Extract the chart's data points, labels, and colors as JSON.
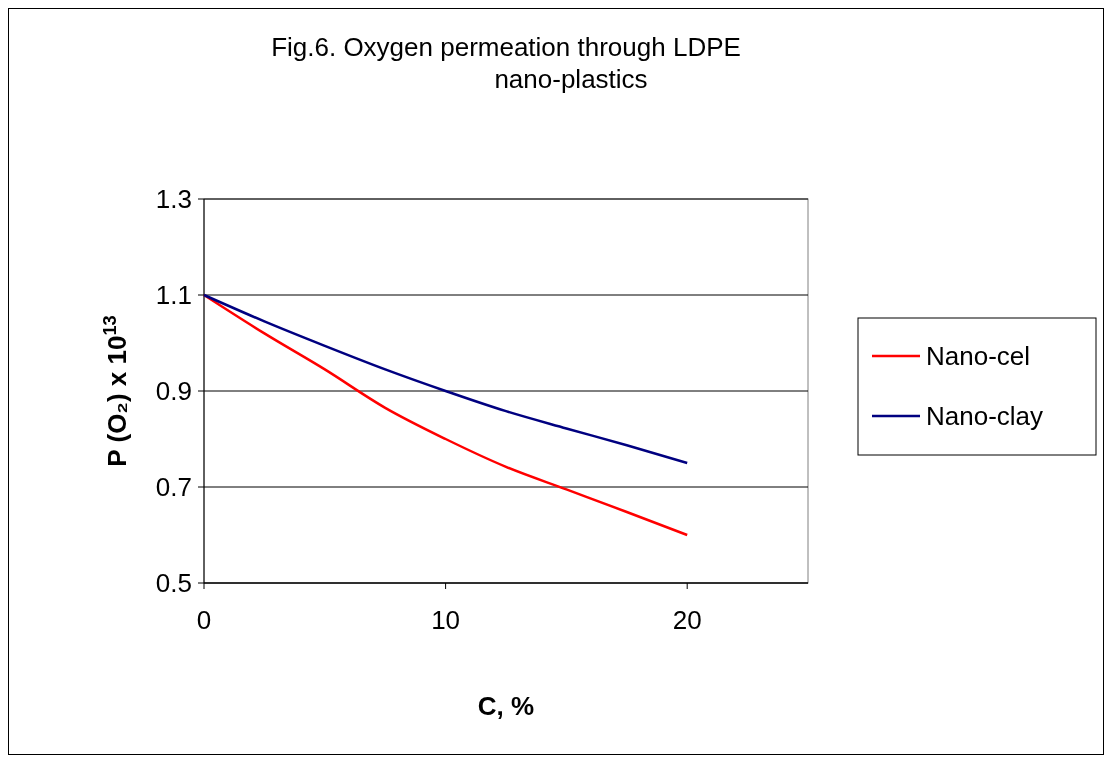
{
  "chart_data": {
    "type": "line",
    "title": "Fig.6. Oxygen permeation through LDPE nano-plastics",
    "xlabel": "C, %",
    "ylabel": "P (O₂) x 10$^{13}$",
    "xlim": [
      0,
      25
    ],
    "xticks": [
      0,
      10,
      20
    ],
    "ylim": [
      0.5,
      1.3
    ],
    "yticks": [
      0.5,
      0.7,
      0.9,
      1.1,
      1.3
    ],
    "grid": "y",
    "legend": "right",
    "marker": "none",
    "line_style": "solid",
    "series": [
      {
        "name": "Nano-cel",
        "color": "#ff0000",
        "x": [
          0,
          2.5,
          5,
          7.5,
          10,
          12.5,
          15,
          17.5,
          20
        ],
        "values": [
          1.1,
          1.02,
          0.945,
          0.865,
          0.8,
          0.742,
          0.695,
          0.648,
          0.6
        ]
      },
      {
        "name": "Nano-clay",
        "color": "#000080",
        "x": [
          0,
          2.5,
          5,
          7.5,
          10,
          12.5,
          15,
          17.5,
          20
        ],
        "values": [
          1.1,
          1.045,
          0.994,
          0.945,
          0.9,
          0.858,
          0.822,
          0.787,
          0.75
        ]
      }
    ]
  }
}
